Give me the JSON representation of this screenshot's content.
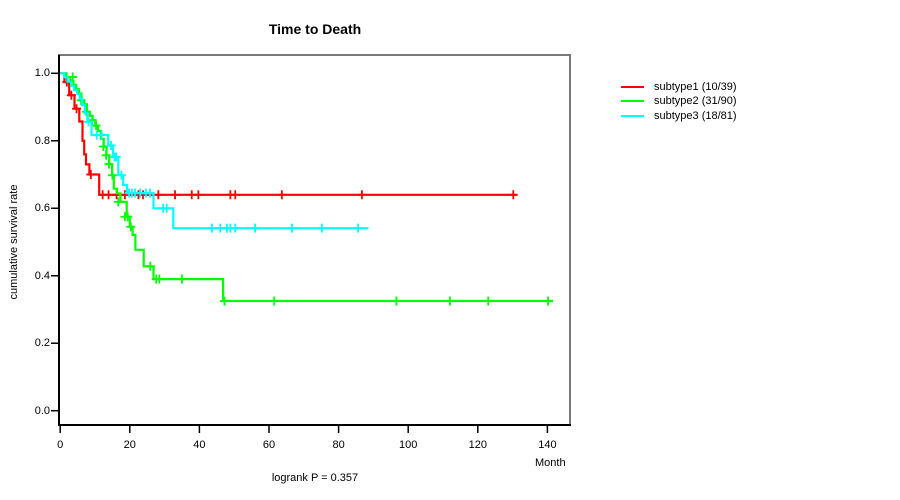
{
  "title": "Time to Death",
  "footnote": "logrank P = 0.357",
  "y_axis": {
    "label": "cumulative survival rate",
    "tick_labels": [
      "1.0",
      "0.8",
      "0.6",
      "0.4",
      "0.2",
      "0.0"
    ],
    "tick_values": [
      1.0,
      0.8,
      0.6,
      0.4,
      0.2,
      0.0
    ]
  },
  "x_axis": {
    "label": "Month",
    "tick_values": [
      0,
      20,
      40,
      60,
      80,
      100,
      120,
      140
    ]
  },
  "legend": {
    "position": "right-outside",
    "entries": [
      {
        "label": "subtype1 (10/39)",
        "color": "#ff0000"
      },
      {
        "label": "subtype2 (31/90)",
        "color": "#00ff00"
      },
      {
        "label": "subtype3 (18/81)",
        "color": "#00ffff"
      }
    ]
  },
  "chart_data": {
    "type": "line",
    "subtype": "kaplan-meier-step",
    "title": "Time to Death",
    "xlabel": "Month",
    "ylabel": "cumulative survival rate",
    "xlim": [
      0,
      146
    ],
    "ylim": [
      0,
      1.04
    ],
    "grid": false,
    "legend_position": "right-outside",
    "annotation": "logrank P = 0.357",
    "series": [
      {
        "name": "subtype1 (10/39)",
        "color": "#ff0000",
        "events": 10,
        "n": 39,
        "steps": [
          [
            0,
            1.0
          ],
          [
            1.2,
            0.974
          ],
          [
            2.6,
            0.935
          ],
          [
            4.1,
            0.895
          ],
          [
            5.5,
            0.857
          ],
          [
            6.4,
            0.8
          ],
          [
            6.9,
            0.76
          ],
          [
            7.4,
            0.73
          ],
          [
            8.4,
            0.7
          ],
          [
            11.2,
            0.64
          ]
        ],
        "end_month": 131.2,
        "censors": [
          [
            1.9,
            0.974
          ],
          [
            3.2,
            0.935
          ],
          [
            4.7,
            0.895
          ],
          [
            8.8,
            0.7
          ],
          [
            12.2,
            0.64
          ],
          [
            13.9,
            0.64
          ],
          [
            16.2,
            0.64
          ],
          [
            18.6,
            0.64
          ],
          [
            22.5,
            0.64
          ],
          [
            23.8,
            0.64
          ],
          [
            28.2,
            0.64
          ],
          [
            33.0,
            0.64
          ],
          [
            37.8,
            0.64
          ],
          [
            39.7,
            0.64
          ],
          [
            48.9,
            0.64
          ],
          [
            50.3,
            0.64
          ],
          [
            63.7,
            0.64
          ],
          [
            86.7,
            0.64
          ],
          [
            130.2,
            0.64
          ]
        ]
      },
      {
        "name": "subtype2 (31/90)",
        "color": "#00ff00",
        "events": 31,
        "n": 90,
        "steps": [
          [
            0,
            1.0
          ],
          [
            1.8,
            0.989
          ],
          [
            2.9,
            0.978
          ],
          [
            3.8,
            0.966
          ],
          [
            4.6,
            0.953
          ],
          [
            5.4,
            0.94
          ],
          [
            6.1,
            0.92
          ],
          [
            6.9,
            0.908
          ],
          [
            7.7,
            0.886
          ],
          [
            8.5,
            0.874
          ],
          [
            9.3,
            0.861
          ],
          [
            10.1,
            0.845
          ],
          [
            10.9,
            0.829
          ],
          [
            11.7,
            0.806
          ],
          [
            12.5,
            0.783
          ],
          [
            13.3,
            0.757
          ],
          [
            14.1,
            0.731
          ],
          [
            14.9,
            0.698
          ],
          [
            15.4,
            0.658
          ],
          [
            16.3,
            0.644
          ],
          [
            17.3,
            0.619
          ],
          [
            19.1,
            0.575
          ],
          [
            20.0,
            0.545
          ],
          [
            20.8,
            0.521
          ],
          [
            21.6,
            0.477
          ],
          [
            24.0,
            0.428
          ],
          [
            26.8,
            0.39
          ],
          [
            46.8,
            0.325
          ]
        ],
        "end_month": 141.6,
        "censors": [
          [
            3.6,
            0.989
          ],
          [
            6.0,
            0.92
          ],
          [
            7.5,
            0.886
          ],
          [
            9.2,
            0.861
          ],
          [
            10.3,
            0.845
          ],
          [
            12.4,
            0.783
          ],
          [
            13.2,
            0.757
          ],
          [
            14.0,
            0.731
          ],
          [
            15.0,
            0.698
          ],
          [
            16.7,
            0.619
          ],
          [
            18.6,
            0.575
          ],
          [
            19.4,
            0.575
          ],
          [
            20.3,
            0.545
          ],
          [
            25.9,
            0.428
          ],
          [
            27.6,
            0.39
          ],
          [
            28.5,
            0.39
          ],
          [
            35.0,
            0.39
          ],
          [
            47.2,
            0.325
          ],
          [
            61.5,
            0.325
          ],
          [
            96.6,
            0.325
          ],
          [
            112.0,
            0.325
          ],
          [
            123.0,
            0.325
          ],
          [
            140.2,
            0.325
          ]
        ]
      },
      {
        "name": "subtype3 (18/81)",
        "color": "#00ffff",
        "events": 18,
        "n": 81,
        "steps": [
          [
            0,
            1.0
          ],
          [
            1.2,
            0.988
          ],
          [
            2.1,
            0.975
          ],
          [
            3.1,
            0.963
          ],
          [
            4.0,
            0.95
          ],
          [
            4.9,
            0.938
          ],
          [
            5.6,
            0.925
          ],
          [
            6.3,
            0.906
          ],
          [
            7.1,
            0.882
          ],
          [
            7.8,
            0.856
          ],
          [
            9.0,
            0.817
          ],
          [
            13.8,
            0.786
          ],
          [
            15.2,
            0.752
          ],
          [
            16.7,
            0.698
          ],
          [
            18.1,
            0.669
          ],
          [
            19.2,
            0.645
          ],
          [
            26.8,
            0.6
          ],
          [
            32.5,
            0.541
          ]
        ],
        "end_month": 88.6,
        "censors": [
          [
            8.1,
            0.856
          ],
          [
            10.5,
            0.817
          ],
          [
            11.9,
            0.817
          ],
          [
            14.6,
            0.786
          ],
          [
            15.6,
            0.752
          ],
          [
            16.1,
            0.752
          ],
          [
            17.6,
            0.698
          ],
          [
            19.8,
            0.645
          ],
          [
            20.6,
            0.645
          ],
          [
            21.5,
            0.645
          ],
          [
            23.0,
            0.645
          ],
          [
            24.6,
            0.645
          ],
          [
            25.8,
            0.645
          ],
          [
            29.6,
            0.6
          ],
          [
            30.6,
            0.6
          ],
          [
            43.6,
            0.541
          ],
          [
            46.0,
            0.541
          ],
          [
            47.9,
            0.541
          ],
          [
            48.9,
            0.541
          ],
          [
            50.3,
            0.541
          ],
          [
            56.0,
            0.541
          ],
          [
            66.6,
            0.541
          ],
          [
            75.2,
            0.541
          ],
          [
            85.6,
            0.541
          ]
        ],
        "end_censor": true
      }
    ]
  }
}
